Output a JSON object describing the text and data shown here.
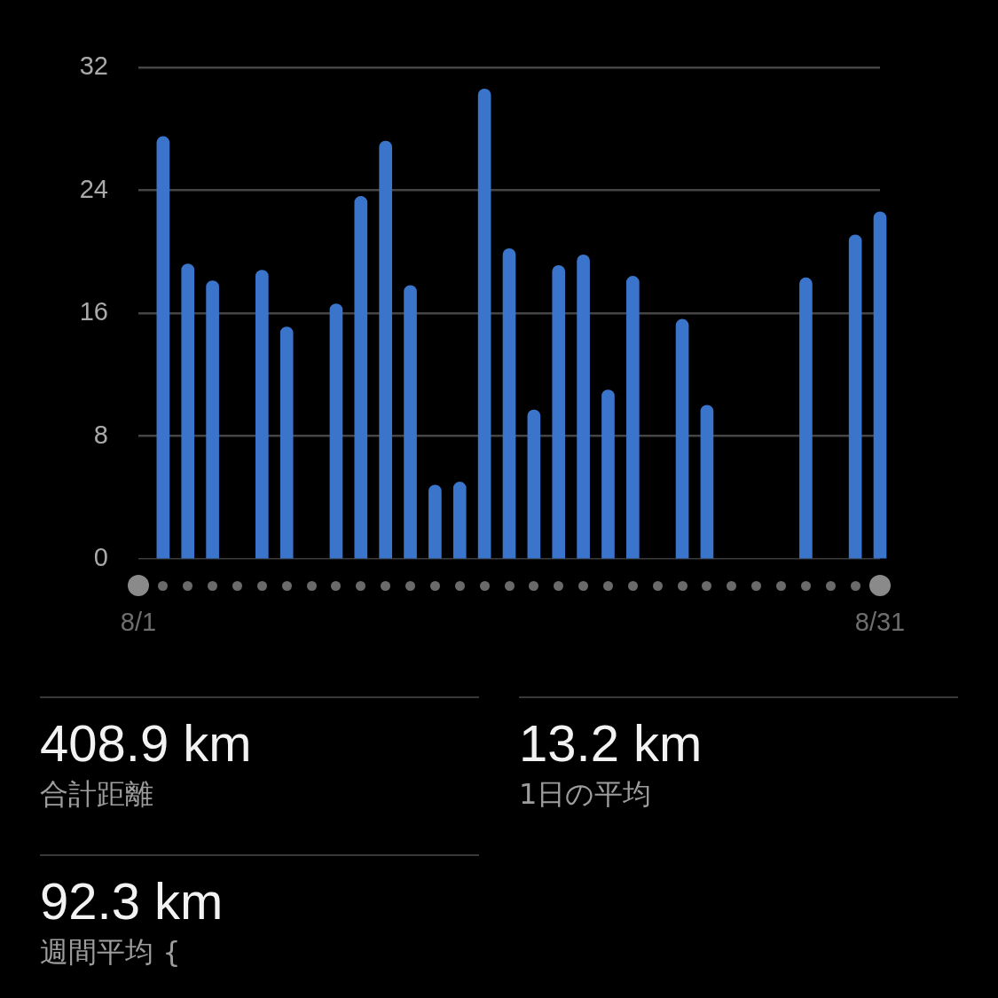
{
  "chart_data": [
    {
      "type": "bar",
      "categories": [
        "8/1",
        null,
        null,
        null,
        null,
        null,
        null,
        null,
        null,
        null,
        null,
        null,
        null,
        null,
        null,
        null,
        null,
        null,
        null,
        null,
        null,
        null,
        null,
        null,
        null,
        null,
        null,
        null,
        null,
        null,
        "8/31"
      ],
      "values": [
        null,
        27.5,
        19.2,
        18.1,
        null,
        18.8,
        15.1,
        null,
        16.6,
        23.6,
        27.2,
        17.8,
        4.8,
        5.0,
        30.6,
        20.2,
        9.7,
        19.1,
        19.8,
        11.0,
        18.4,
        null,
        15.6,
        10.0,
        null,
        null,
        null,
        18.3,
        null,
        21.1,
        22.6
      ],
      "color": "#3b74cb",
      "ylim": [
        0,
        32
      ],
      "yticks": [
        0,
        8,
        16,
        24,
        32
      ],
      "grid": "y"
    },
    {
      "type": "other",
      "annotations": [
        "408.9 km",
        "合計距離",
        "13.2 km",
        "1日の平均",
        "92.3 km",
        "週間平均 {"
      ]
    }
  ]
}
